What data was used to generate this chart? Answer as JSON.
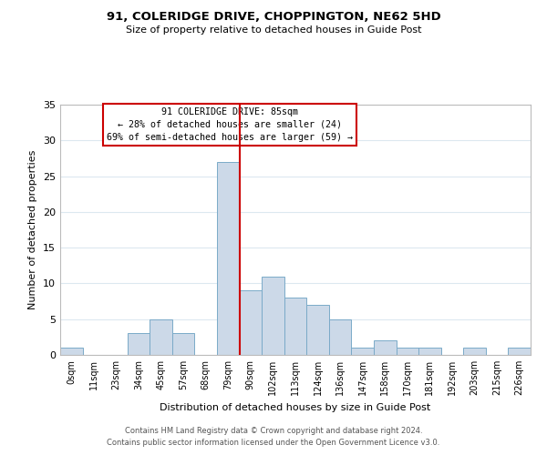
{
  "title_line1": "91, COLERIDGE DRIVE, CHOPPINGTON, NE62 5HD",
  "title_line2": "Size of property relative to detached houses in Guide Post",
  "xlabel": "Distribution of detached houses by size in Guide Post",
  "ylabel": "Number of detached properties",
  "bin_labels": [
    "0sqm",
    "11sqm",
    "23sqm",
    "34sqm",
    "45sqm",
    "57sqm",
    "68sqm",
    "79sqm",
    "90sqm",
    "102sqm",
    "113sqm",
    "124sqm",
    "136sqm",
    "147sqm",
    "158sqm",
    "170sqm",
    "181sqm",
    "192sqm",
    "203sqm",
    "215sqm",
    "226sqm"
  ],
  "bar_heights": [
    1,
    0,
    0,
    3,
    5,
    3,
    0,
    27,
    9,
    11,
    8,
    7,
    5,
    1,
    2,
    1,
    1,
    0,
    1,
    0,
    1
  ],
  "bar_color": "#ccd9e8",
  "bar_edgecolor": "#7aaac8",
  "property_line_color": "#cc0000",
  "annotation_title": "91 COLERIDGE DRIVE: 85sqm",
  "annotation_line2": "← 28% of detached houses are smaller (24)",
  "annotation_line3": "69% of semi-detached houses are larger (59) →",
  "annotation_box_color": "#ffffff",
  "annotation_box_edgecolor": "#cc0000",
  "ylim": [
    0,
    35
  ],
  "yticks": [
    0,
    5,
    10,
    15,
    20,
    25,
    30,
    35
  ],
  "footer_line1": "Contains HM Land Registry data © Crown copyright and database right 2024.",
  "footer_line2": "Contains public sector information licensed under the Open Government Licence v3.0.",
  "background_color": "#ffffff",
  "grid_color": "#dce8f0"
}
